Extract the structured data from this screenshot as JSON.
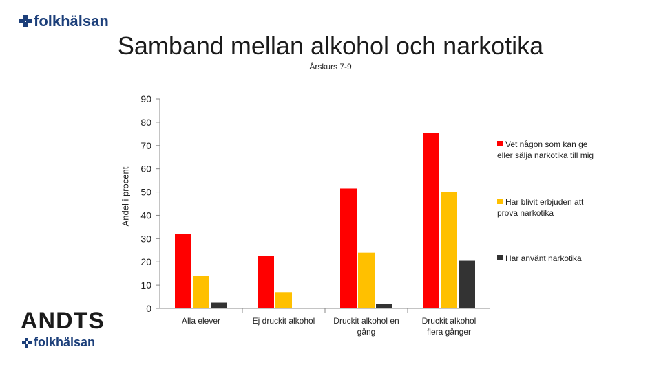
{
  "brand": {
    "logo_text": "folkhälsan",
    "footer_logo_text": "folkhälsan",
    "footer_title": "ANDTS"
  },
  "chart_data": {
    "type": "bar",
    "title": "Samband mellan alkohol och narkotika",
    "subtitle": "Årskurs 7-9",
    "ylabel": "Andel i procent",
    "xlabel": "",
    "ylim": [
      0,
      90
    ],
    "yticks": [
      0,
      10,
      20,
      30,
      40,
      50,
      60,
      70,
      80,
      90
    ],
    "grid": false,
    "legend_position": "right",
    "categories": [
      "Alla elever",
      "Ej druckit alkohol",
      "Druckit alkohol en gång",
      "Druckit alkohol flera gånger"
    ],
    "series": [
      {
        "name": "Vet någon som kan ge eller sälja narkotika till mig",
        "color": "#ff0000",
        "values": [
          32,
          22.5,
          51.5,
          75.5
        ]
      },
      {
        "name": "Har blivit erbjuden att prova narkotika",
        "color": "#ffc000",
        "values": [
          14,
          7,
          24,
          50
        ]
      },
      {
        "name": "Har använt narkotika",
        "color": "#333333",
        "values": [
          2.5,
          0,
          2,
          20.5
        ]
      }
    ]
  }
}
